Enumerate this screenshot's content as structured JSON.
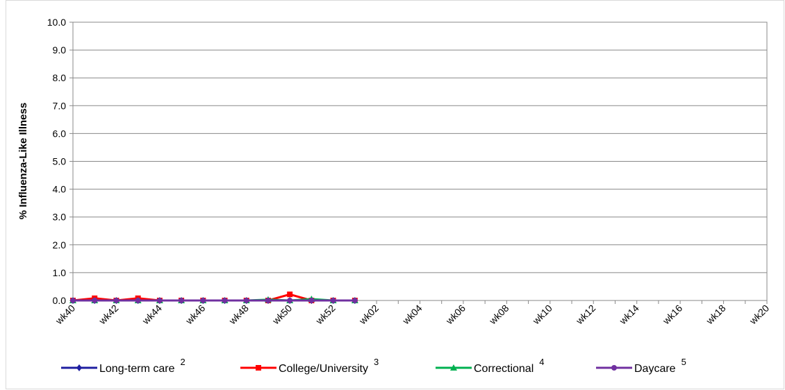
{
  "chart_data": {
    "type": "line",
    "y_label": "% Influenza-Like Illness",
    "categories": [
      "wk40",
      null,
      "wk42",
      null,
      "wk44",
      null,
      "wk46",
      null,
      "wk48",
      null,
      "wk50",
      null,
      "wk52",
      null,
      "wk02",
      null,
      "wk04",
      null,
      "wk06",
      null,
      "wk08",
      null,
      "wk10",
      null,
      "wk12",
      null,
      "wk14",
      null,
      "wk16",
      null,
      "wk18",
      null,
      "wk20"
    ],
    "ylim": [
      0,
      10
    ],
    "yticks": [
      {
        "value": 0,
        "label": "0.0"
      },
      {
        "value": 1,
        "label": "1.0"
      },
      {
        "value": 2,
        "label": "2.0"
      },
      {
        "value": 3,
        "label": "3.0"
      },
      {
        "value": 4,
        "label": "4.0"
      },
      {
        "value": 5,
        "label": "5.0"
      },
      {
        "value": 6,
        "label": "6.0"
      },
      {
        "value": 7,
        "label": "7.0"
      },
      {
        "value": 8,
        "label": "8.0"
      },
      {
        "value": 9,
        "label": "9.0"
      },
      {
        "value": 10,
        "label": "10.0"
      }
    ],
    "grid": true,
    "series": [
      {
        "name": "Long-term care",
        "note": "2",
        "color": "#1f1fa0",
        "marker": "diamond",
        "values": [
          0,
          0,
          0,
          0,
          0,
          0,
          0,
          0,
          0,
          0,
          0,
          0,
          0,
          0,
          null,
          null,
          null,
          null,
          null,
          null,
          null,
          null,
          null,
          null,
          null,
          null,
          null,
          null,
          null,
          null,
          null,
          null,
          null
        ]
      },
      {
        "name": "College/University",
        "note": "3",
        "color": "#ff0000",
        "marker": "square",
        "values": [
          0,
          0.08,
          0,
          0.08,
          0,
          0,
          0,
          0,
          0,
          0,
          0.22,
          0,
          0,
          0,
          null,
          null,
          null,
          null,
          null,
          null,
          null,
          null,
          null,
          null,
          null,
          null,
          null,
          null,
          null,
          null,
          null,
          null,
          null
        ]
      },
      {
        "name": "Correctional",
        "note": "4",
        "color": "#00b050",
        "marker": "triangle",
        "values": [
          0,
          0,
          0,
          0,
          0,
          0,
          0,
          0,
          0,
          0.03,
          0,
          0.05,
          0,
          0,
          null,
          null,
          null,
          null,
          null,
          null,
          null,
          null,
          null,
          null,
          null,
          null,
          null,
          null,
          null,
          null,
          null,
          null,
          null
        ]
      },
      {
        "name": "Daycare",
        "note": "5",
        "color": "#7030a0",
        "marker": "circle",
        "values": [
          0,
          0,
          0,
          0,
          0,
          0,
          0,
          0,
          0,
          0,
          0,
          0,
          0,
          0,
          null,
          null,
          null,
          null,
          null,
          null,
          null,
          null,
          null,
          null,
          null,
          null,
          null,
          null,
          null,
          null,
          null,
          null,
          null
        ]
      }
    ]
  }
}
